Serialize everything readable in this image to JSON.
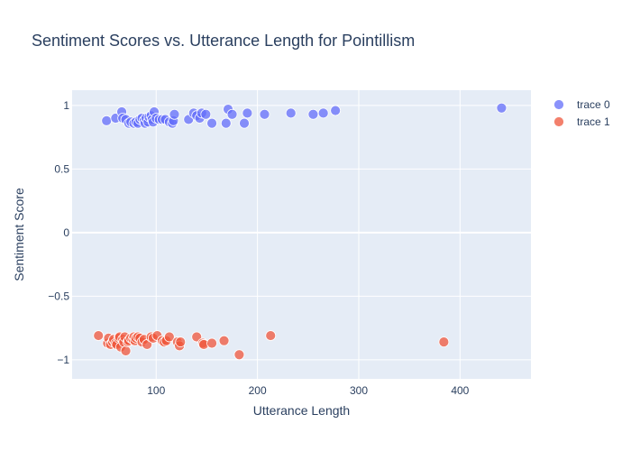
{
  "chart_data": {
    "type": "scatter",
    "title": "Sentiment Scores vs. Utterance Length for Pointillism",
    "xlabel": "Utterance Length",
    "ylabel": "Sentiment Score",
    "xlim": [
      17,
      470
    ],
    "ylim": [
      -1.15,
      1.12
    ],
    "x_ticks": [
      100,
      200,
      300,
      400
    ],
    "x_tick_labels": [
      "100",
      "200",
      "300",
      "400"
    ],
    "y_ticks": [
      1,
      0.5,
      0,
      -0.5,
      -1
    ],
    "y_tick_labels": [
      "1",
      "0.5",
      "0",
      "−0.5",
      "−1"
    ],
    "grid": true,
    "legend_position": "top-right",
    "colors": {
      "trace 0": "#636efa",
      "trace 1": "#ef553b",
      "plot_bg": "#e5ecf6",
      "text": "#2a3f5f"
    },
    "series": [
      {
        "name": "trace 0",
        "x": [
          51,
          60,
          66,
          67,
          70,
          73,
          75,
          78,
          80,
          82,
          84,
          86,
          88,
          89,
          90,
          92,
          93,
          95,
          96,
          97,
          98,
          100,
          103,
          106,
          109,
          113,
          116,
          117,
          118,
          132,
          137,
          140,
          143,
          145,
          149,
          155,
          169,
          171,
          175,
          187,
          190,
          207,
          233,
          255,
          265,
          277,
          441
        ],
        "y": [
          0.88,
          0.9,
          0.95,
          0.9,
          0.89,
          0.86,
          0.87,
          0.86,
          0.87,
          0.86,
          0.89,
          0.9,
          0.88,
          0.86,
          0.9,
          0.87,
          0.91,
          0.92,
          0.89,
          0.87,
          0.95,
          0.9,
          0.89,
          0.89,
          0.89,
          0.87,
          0.86,
          0.88,
          0.93,
          0.89,
          0.94,
          0.92,
          0.9,
          0.94,
          0.93,
          0.86,
          0.86,
          0.97,
          0.93,
          0.86,
          0.94,
          0.93,
          0.94,
          0.93,
          0.94,
          0.96,
          0.98
        ]
      },
      {
        "name": "trace 1",
        "x": [
          43,
          52,
          53,
          55,
          57,
          58,
          60,
          61,
          63,
          64,
          65,
          67,
          68,
          69,
          70,
          72,
          73,
          75,
          77,
          78,
          79,
          80,
          82,
          84,
          86,
          88,
          91,
          95,
          97,
          101,
          106,
          108,
          110,
          113,
          121,
          123,
          124,
          140,
          146,
          147,
          155,
          167,
          182,
          213,
          384
        ],
        "y": [
          -0.81,
          -0.87,
          -0.83,
          -0.88,
          -0.86,
          -0.84,
          -0.87,
          -0.88,
          -0.83,
          -0.82,
          -0.9,
          -0.84,
          -0.86,
          -0.82,
          -0.93,
          -0.86,
          -0.85,
          -0.83,
          -0.84,
          -0.82,
          -0.85,
          -0.83,
          -0.82,
          -0.83,
          -0.86,
          -0.84,
          -0.88,
          -0.82,
          -0.83,
          -0.81,
          -0.85,
          -0.86,
          -0.85,
          -0.82,
          -0.86,
          -0.89,
          -0.86,
          -0.82,
          -0.87,
          -0.88,
          -0.87,
          -0.85,
          -0.96,
          -0.81,
          -0.86
        ]
      }
    ]
  }
}
